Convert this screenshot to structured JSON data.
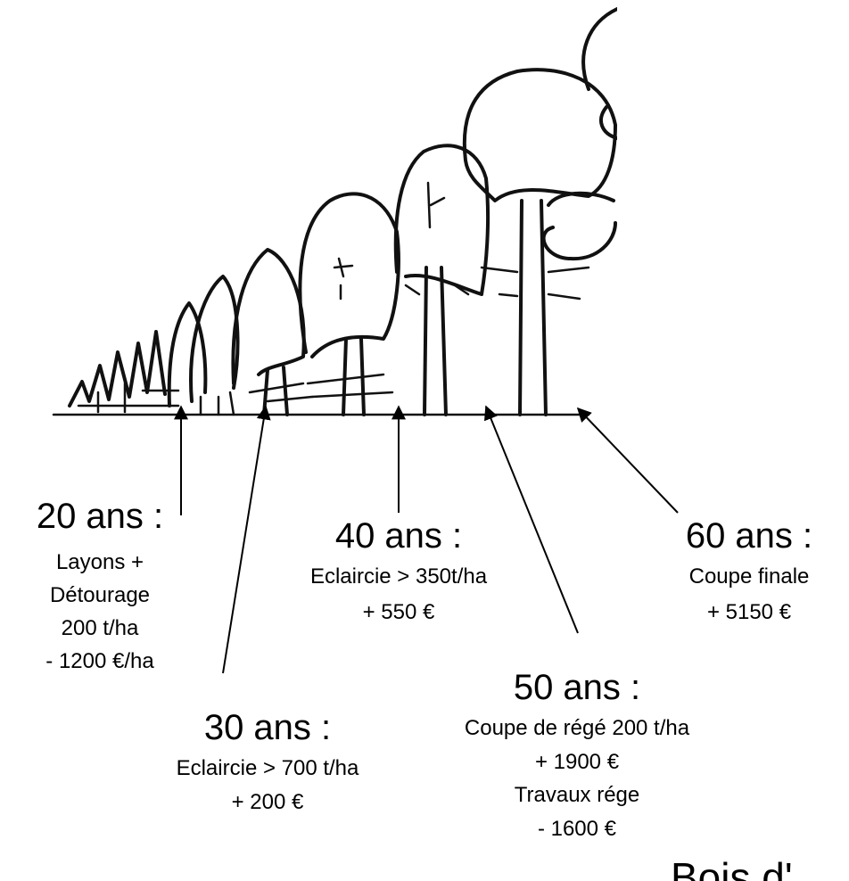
{
  "stages": [
    {
      "age": "20 ans :",
      "lines": [
        "Layons +",
        "Détourage",
        "200 t/ha",
        "- 1200 €/ha"
      ]
    },
    {
      "age": "30 ans :",
      "lines": [
        "Eclaircie > 700 t/ha",
        "+ 200 €"
      ]
    },
    {
      "age": "40 ans :",
      "lines": [
        "Eclaircie > 350t/ha",
        "+ 550 €"
      ]
    },
    {
      "age": "50 ans :",
      "lines": [
        "Coupe de régé 200 t/ha",
        "+ 1900 €",
        "Travaux rége",
        "- 1600 €"
      ]
    },
    {
      "age": "60 ans :",
      "lines": [
        "Coupe finale",
        "+ 5150 €"
      ]
    }
  ],
  "footer": "Bois d'"
}
